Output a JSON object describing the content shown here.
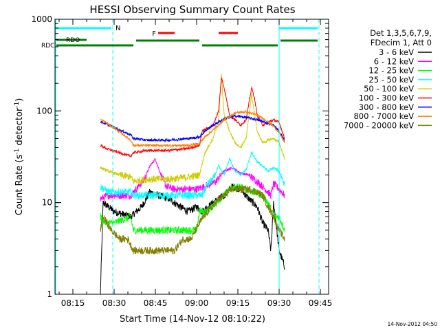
{
  "chart_data": {
    "type": "line",
    "title": "HESSI Observing Summary Count Rates",
    "xlabel": "Start Time (14-Nov-12 08:10:22)",
    "ylabel_main": "Count Rate (s",
    "ylabel_sup1": "-1",
    "ylabel_mid": " detector",
    "ylabel_sup2": "-1",
    "ylabel_end": ")",
    "y_scale": "log",
    "ylim": [
      1,
      1000
    ],
    "xlim_minutes": [
      8.5,
      108.0
    ],
    "x_ticks": [
      {
        "m": 15,
        "label": "08:15"
      },
      {
        "m": 30,
        "label": "08:30"
      },
      {
        "m": 45,
        "label": "08:45"
      },
      {
        "m": 60,
        "label": "09:00"
      },
      {
        "m": 75,
        "label": "09:15"
      },
      {
        "m": 90,
        "label": "09:30"
      },
      {
        "m": 105,
        "label": "09:45"
      }
    ],
    "y_ticks": [
      {
        "v": 1,
        "label": "1"
      },
      {
        "v": 10,
        "label": "10"
      },
      {
        "v": 100,
        "label": "100"
      },
      {
        "v": 1000,
        "label": "1000"
      }
    ],
    "legend_header": [
      "Det 1,3,5,6,7,9,",
      "FDecim 1, Att 0"
    ],
    "series": [
      {
        "name": "3 - 6 keV",
        "color": "#000000",
        "key": [
          [
            25,
            1
          ],
          [
            26,
            10
          ],
          [
            30,
            8
          ],
          [
            36,
            7
          ],
          [
            40,
            9
          ],
          [
            43,
            13
          ],
          [
            46,
            12
          ],
          [
            50,
            11
          ],
          [
            54,
            9
          ],
          [
            57,
            8
          ],
          [
            60,
            9
          ],
          [
            62,
            8
          ],
          [
            66,
            10
          ],
          [
            70,
            12
          ],
          [
            73,
            15
          ],
          [
            76,
            14
          ],
          [
            79,
            11
          ],
          [
            82,
            9
          ],
          [
            84,
            6
          ],
          [
            86,
            5
          ],
          [
            87,
            3
          ],
          [
            88,
            10
          ],
          [
            90,
            3
          ],
          [
            92,
            2
          ]
        ]
      },
      {
        "name": "6 - 12 keV",
        "color": "#ff00ff",
        "key": [
          [
            25,
            11
          ],
          [
            28,
            12
          ],
          [
            33,
            12
          ],
          [
            36,
            12
          ],
          [
            38,
            14
          ],
          [
            41,
            18
          ],
          [
            43,
            25
          ],
          [
            45,
            30
          ],
          [
            47,
            20
          ],
          [
            49,
            15
          ],
          [
            52,
            14
          ],
          [
            56,
            14
          ],
          [
            60,
            14
          ],
          [
            63,
            15
          ],
          [
            67,
            17
          ],
          [
            70,
            22
          ],
          [
            73,
            24
          ],
          [
            76,
            21
          ],
          [
            79,
            20
          ],
          [
            82,
            17
          ],
          [
            85,
            14
          ],
          [
            87,
            12
          ],
          [
            88,
            16
          ],
          [
            90,
            14
          ],
          [
            92,
            12
          ]
        ]
      },
      {
        "name": "12 - 25 keV",
        "color": "#00ff00",
        "key": [
          [
            25,
            7
          ],
          [
            27,
            6
          ],
          [
            30,
            6
          ],
          [
            36,
            7
          ],
          [
            37,
            5
          ],
          [
            43,
            5
          ],
          [
            50,
            5
          ],
          [
            55,
            5
          ],
          [
            60,
            5
          ],
          [
            61,
            8
          ],
          [
            64,
            8
          ],
          [
            67,
            10
          ],
          [
            70,
            12
          ],
          [
            72,
            14
          ],
          [
            75,
            15
          ],
          [
            78,
            14
          ],
          [
            81,
            13
          ],
          [
            84,
            12
          ],
          [
            86,
            10
          ],
          [
            88,
            7
          ],
          [
            90,
            7
          ],
          [
            92,
            5
          ]
        ]
      },
      {
        "name": "25 - 50 keV",
        "color": "#00ffff",
        "key": [
          [
            25,
            15
          ],
          [
            28,
            13
          ],
          [
            32,
            13
          ],
          [
            36,
            13
          ],
          [
            37,
            12
          ],
          [
            42,
            12
          ],
          [
            50,
            12
          ],
          [
            57,
            12
          ],
          [
            62,
            12
          ],
          [
            64,
            16
          ],
          [
            66,
            18
          ],
          [
            68,
            25
          ],
          [
            70,
            20
          ],
          [
            72,
            30
          ],
          [
            74,
            22
          ],
          [
            76,
            20
          ],
          [
            78,
            23
          ],
          [
            80,
            35
          ],
          [
            82,
            28
          ],
          [
            84,
            25
          ],
          [
            86,
            22
          ],
          [
            88,
            24
          ],
          [
            90,
            22
          ],
          [
            92,
            16
          ]
        ]
      },
      {
        "name": "50 - 100 keV",
        "color": "#cccc00",
        "key": [
          [
            25,
            24
          ],
          [
            28,
            22
          ],
          [
            32,
            20
          ],
          [
            36,
            19
          ],
          [
            37,
            17
          ],
          [
            42,
            18
          ],
          [
            50,
            18
          ],
          [
            57,
            19
          ],
          [
            61,
            20
          ],
          [
            63,
            35
          ],
          [
            66,
            50
          ],
          [
            68,
            80
          ],
          [
            69,
            250
          ],
          [
            70,
            90
          ],
          [
            72,
            60
          ],
          [
            74,
            45
          ],
          [
            76,
            40
          ],
          [
            78,
            50
          ],
          [
            80,
            150
          ],
          [
            82,
            60
          ],
          [
            84,
            45
          ],
          [
            86,
            48
          ],
          [
            88,
            50
          ],
          [
            90,
            45
          ],
          [
            92,
            30
          ]
        ]
      },
      {
        "name": "100 - 300 keV",
        "color": "#ff0000",
        "key": [
          [
            25,
            42
          ],
          [
            28,
            38
          ],
          [
            32,
            35
          ],
          [
            36,
            32
          ],
          [
            37,
            35
          ],
          [
            42,
            37
          ],
          [
            50,
            37
          ],
          [
            57,
            39
          ],
          [
            61,
            42
          ],
          [
            62,
            60
          ],
          [
            64,
            65
          ],
          [
            66,
            70
          ],
          [
            68,
            100
          ],
          [
            69,
            230
          ],
          [
            70,
            180
          ],
          [
            72,
            90
          ],
          [
            74,
            80
          ],
          [
            76,
            70
          ],
          [
            78,
            80
          ],
          [
            80,
            180
          ],
          [
            81,
            140
          ],
          [
            82,
            90
          ],
          [
            84,
            70
          ],
          [
            86,
            75
          ],
          [
            88,
            80
          ],
          [
            90,
            75
          ],
          [
            92,
            50
          ]
        ]
      },
      {
        "name": "300 - 800 keV",
        "color": "#0000ff",
        "key": [
          [
            25,
            77
          ],
          [
            27,
            72
          ],
          [
            30,
            66
          ],
          [
            33,
            60
          ],
          [
            36,
            55
          ],
          [
            37,
            50
          ],
          [
            42,
            48
          ],
          [
            50,
            48
          ],
          [
            57,
            50
          ],
          [
            61,
            52
          ],
          [
            63,
            60
          ],
          [
            66,
            70
          ],
          [
            70,
            82
          ],
          [
            74,
            88
          ],
          [
            78,
            85
          ],
          [
            82,
            80
          ],
          [
            85,
            75
          ],
          [
            88,
            70
          ],
          [
            90,
            60
          ],
          [
            92,
            48
          ]
        ]
      },
      {
        "name": "800 - 7000 keV",
        "color": "#ff8000",
        "key": [
          [
            25,
            80
          ],
          [
            27,
            75
          ],
          [
            30,
            65
          ],
          [
            33,
            56
          ],
          [
            36,
            48
          ],
          [
            37,
            42
          ],
          [
            42,
            42
          ],
          [
            50,
            42
          ],
          [
            57,
            42
          ],
          [
            61,
            44
          ],
          [
            63,
            52
          ],
          [
            66,
            62
          ],
          [
            70,
            80
          ],
          [
            74,
            95
          ],
          [
            78,
            98
          ],
          [
            82,
            90
          ],
          [
            85,
            80
          ],
          [
            88,
            68
          ],
          [
            90,
            58
          ],
          [
            92,
            45
          ]
        ]
      },
      {
        "name": "7000 - 20000 keV",
        "color": "#808000",
        "key": [
          [
            25,
            5
          ],
          [
            26,
            7
          ],
          [
            29,
            5
          ],
          [
            32,
            4
          ],
          [
            35,
            4
          ],
          [
            37,
            3
          ],
          [
            42,
            3
          ],
          [
            48,
            3
          ],
          [
            52,
            3
          ],
          [
            55,
            4
          ],
          [
            58,
            4
          ],
          [
            61,
            6
          ],
          [
            64,
            8
          ],
          [
            67,
            10
          ],
          [
            70,
            12
          ],
          [
            73,
            14
          ],
          [
            76,
            14
          ],
          [
            79,
            14
          ],
          [
            82,
            13
          ],
          [
            84,
            12
          ],
          [
            86,
            9
          ],
          [
            88,
            7
          ],
          [
            90,
            5
          ],
          [
            92,
            4
          ]
        ]
      }
    ],
    "annotations": {
      "top_bar_label": "N",
      "flare_label": "F",
      "rdo_label": "RDO",
      "rdc_label": "RDC"
    },
    "colors": {
      "night_bar": "#00ffff",
      "flare_bar": "#ff0000",
      "rdo_bar": "#008000"
    }
  },
  "footer_stamp": "14-Nov-2012 04:50"
}
